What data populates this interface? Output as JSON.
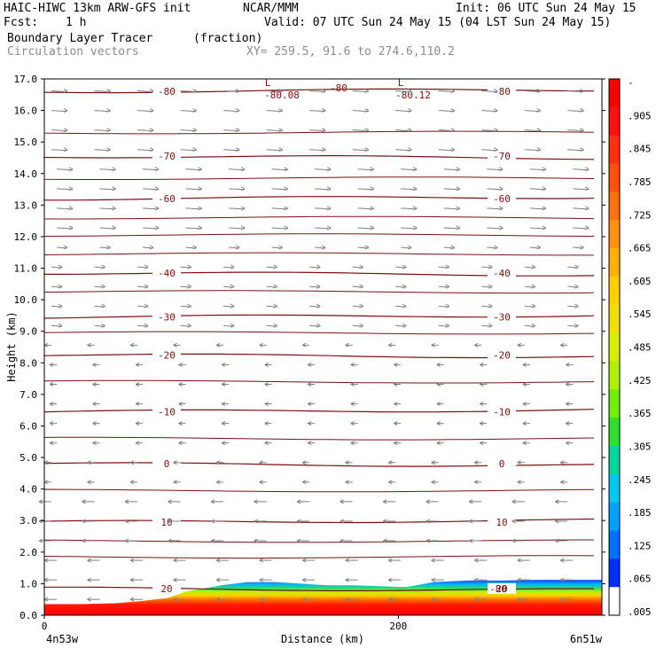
{
  "header": {
    "model": "HAIC-HIWC 13km ARW-GFS init",
    "org": "NCAR/MMM",
    "init": "Init: 06 UTC Sun 24 May 15",
    "fcst_label": "Fcst:",
    "fcst_value": "1 h",
    "valid": "Valid: 07 UTC Sun 24 May 15 (04 LST Sun 24 May 15)",
    "field_name": "Boundary Layer Tracer",
    "field_unit": "(fraction)",
    "vectors_label": "Circulation vectors",
    "xy_label": "XY= 259.5, 91.6 to 274.6,110.2"
  },
  "chart_data": {
    "type": "heatmap",
    "ylabel": "Height (km)",
    "xlabel": "Distance (km)",
    "ylim": [
      0,
      17
    ],
    "xlim": [
      0,
      315
    ],
    "y_ticks": [
      "0.0",
      "1.0",
      "2.0",
      "3.0",
      "4.0",
      "5.0",
      "6.0",
      "7.0",
      "8.0",
      "9.0",
      "10.0",
      "11.0",
      "12.0",
      "13.0",
      "14.0",
      "15.0",
      "16.0",
      "17.0"
    ],
    "x_ticks": [
      {
        "value": 0,
        "label": "0"
      },
      {
        "value": 200,
        "label": "200"
      }
    ],
    "x_endpoint_labels": {
      "left": "4n53w",
      "right": "6n51w"
    },
    "tracer_top_km": [
      0.35,
      0.35,
      0.38,
      0.45,
      0.55,
      0.75,
      0.85,
      0.95,
      1.05,
      1.05,
      1.0,
      0.95,
      0.95,
      0.92,
      0.9,
      0.9,
      0.95,
      1.05,
      1.1,
      1.1,
      1.12,
      1.12,
      1.12
    ],
    "tracer_top_x_km": [
      0,
      20,
      40,
      55,
      70,
      80,
      90,
      100,
      115,
      130,
      145,
      160,
      175,
      190,
      200,
      205,
      210,
      220,
      240,
      260,
      280,
      300,
      315
    ],
    "colorbar": {
      "labels": [
        "-",
        ".905",
        ".845",
        ".785",
        ".725",
        ".665",
        ".605",
        ".545",
        ".485",
        ".425",
        ".365",
        ".305",
        ".245",
        ".185",
        ".125",
        ".065",
        ".005"
      ],
      "colors": [
        "#ff0000",
        "#ff1010",
        "#ff3010",
        "#ff5010",
        "#ff7010",
        "#ff9010",
        "#ffb000",
        "#ffd000",
        "#f0e000",
        "#d8f000",
        "#b0f000",
        "#70f000",
        "#30e030",
        "#00d8a0",
        "#00c8f0",
        "#00a0ff",
        "#0070ff",
        "#0030ff",
        "#ffffff"
      ]
    },
    "contours": [
      {
        "label": "-80",
        "y_km": 16.6
      },
      {
        "label": "-70",
        "y_km": 14.55
      },
      {
        "label": "-60",
        "y_km": 13.2
      },
      {
        "label": "-40",
        "y_km": 10.85
      },
      {
        "label": "-30",
        "y_km": 9.45
      },
      {
        "label": "-20",
        "y_km": 8.25
      },
      {
        "label": "-10",
        "y_km": 6.45
      },
      {
        "label": "0",
        "y_km": 4.8
      },
      {
        "label": "10",
        "y_km": 2.95
      },
      {
        "label": "20",
        "y_km": 0.85
      }
    ],
    "contour_extra_labels": [
      "L",
      "-80.08",
      "L",
      "-80.12",
      "-80",
      "-80"
    ]
  }
}
